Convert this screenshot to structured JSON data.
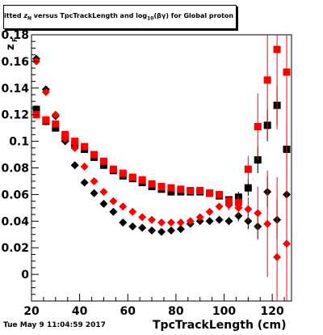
{
  "chart_data": {
    "type": "scatter",
    "title_parts": {
      "pre": "itted ",
      "sym": "z",
      "sym_sub": "N",
      "mid": " versus TpcTrackLength and log",
      "log_sub": "10",
      "post": "(βγ) for Global proton"
    },
    "xlabel": "TpcTrackLength (cm)",
    "ylabel": "z",
    "ylabel_sub": "F",
    "xlim": [
      20,
      128
    ],
    "ylim": [
      -0.02,
      0.18
    ],
    "xticks": [
      20,
      40,
      60,
      80,
      100,
      120
    ],
    "yticks": [
      0,
      0.02,
      0.04,
      0.06,
      0.08,
      0.1,
      0.12,
      0.14,
      0.16,
      0.18
    ],
    "colors": {
      "black": "#000000",
      "red": "#ff0000"
    },
    "series": [
      {
        "marker": "square",
        "color": "#000000",
        "x": [
          22,
          26,
          30,
          34,
          38,
          42,
          46,
          50,
          54,
          58,
          62,
          66,
          70,
          74,
          78,
          82,
          86,
          90,
          94,
          98,
          102,
          106,
          110,
          114,
          118,
          122,
          126
        ],
        "y": [
          0.124,
          0.115,
          0.11,
          0.103,
          0.097,
          0.094,
          0.088,
          0.082,
          0.078,
          0.074,
          0.072,
          0.069,
          0.066,
          0.064,
          0.062,
          0.062,
          0.062,
          0.062,
          0.061,
          0.059,
          0.056,
          0.058,
          0.065,
          0.086,
          0.112,
          0.127,
          0.094
        ],
        "err": [
          0.003,
          0.003,
          0.002,
          0.002,
          0.002,
          0.002,
          0.002,
          0.002,
          0.002,
          0.002,
          0.002,
          0.002,
          0.002,
          0.002,
          0.002,
          0.002,
          0.002,
          0.002,
          0.002,
          0.002,
          0.003,
          0.004,
          0.006,
          0.01,
          0.012,
          0.015,
          0.02
        ]
      },
      {
        "marker": "square",
        "color": "#ff0000",
        "x": [
          22,
          26,
          30,
          34,
          38,
          42,
          46,
          50,
          54,
          58,
          62,
          66,
          70,
          74,
          78,
          82,
          86,
          90,
          94,
          98,
          102,
          106,
          110,
          114,
          118,
          122,
          126
        ],
        "y": [
          0.12,
          0.116,
          0.113,
          0.105,
          0.1,
          0.096,
          0.09,
          0.085,
          0.079,
          0.076,
          0.073,
          0.071,
          0.068,
          0.066,
          0.065,
          0.064,
          0.063,
          0.063,
          0.061,
          0.06,
          0.055,
          0.054,
          0.079,
          0.111,
          0.146,
          0.169,
          0.152
        ],
        "err": [
          0.003,
          0.003,
          0.002,
          0.002,
          0.002,
          0.002,
          0.002,
          0.002,
          0.002,
          0.002,
          0.002,
          0.002,
          0.002,
          0.002,
          0.002,
          0.002,
          0.002,
          0.002,
          0.002,
          0.002,
          0.004,
          0.005,
          0.01,
          0.025,
          0.045,
          0.06,
          0.07
        ]
      },
      {
        "marker": "diamond",
        "color": "#000000",
        "x": [
          22,
          26,
          30,
          34,
          38,
          42,
          46,
          50,
          54,
          58,
          62,
          66,
          70,
          74,
          78,
          82,
          86,
          90,
          94,
          98,
          102,
          106,
          110,
          114,
          118,
          122,
          126
        ],
        "y": [
          0.162,
          0.139,
          0.119,
          0.1,
          0.082,
          0.069,
          0.061,
          0.053,
          0.047,
          0.039,
          0.036,
          0.035,
          0.033,
          0.032,
          0.033,
          0.034,
          0.038,
          0.04,
          0.04,
          0.041,
          0.04,
          0.044,
          0.04,
          0.036,
          0.062,
          0.041,
          0.06
        ],
        "err": [
          0.002,
          0.002,
          0.002,
          0.002,
          0.002,
          0.002,
          0.002,
          0.002,
          0.002,
          0.002,
          0.002,
          0.002,
          0.002,
          0.002,
          0.002,
          0.002,
          0.002,
          0.002,
          0.002,
          0.002,
          0.003,
          0.004,
          0.006,
          0.009,
          0.012,
          0.015,
          0.02
        ]
      },
      {
        "marker": "diamond",
        "color": "#ff0000",
        "x": [
          22,
          26,
          30,
          34,
          38,
          42,
          46,
          50,
          54,
          58,
          62,
          66,
          70,
          74,
          78,
          82,
          86,
          90,
          94,
          98,
          102,
          106,
          110,
          114,
          118,
          122,
          126
        ],
        "y": [
          0.16,
          0.137,
          0.12,
          0.102,
          0.095,
          0.081,
          0.07,
          0.062,
          0.055,
          0.051,
          0.047,
          0.043,
          0.041,
          0.039,
          0.039,
          0.039,
          0.04,
          0.043,
          0.047,
          0.051,
          0.052,
          0.05,
          0.049,
          0.046,
          0.038,
          0.013,
          0.023
        ],
        "err": [
          0.002,
          0.002,
          0.002,
          0.002,
          0.002,
          0.002,
          0.002,
          0.002,
          0.002,
          0.002,
          0.002,
          0.002,
          0.002,
          0.002,
          0.002,
          0.002,
          0.002,
          0.002,
          0.002,
          0.002,
          0.004,
          0.006,
          0.009,
          0.02,
          0.04,
          0.06,
          0.08
        ]
      }
    ]
  },
  "footer": {
    "timestamp": "Tue May  9 11:04:59 2017"
  }
}
